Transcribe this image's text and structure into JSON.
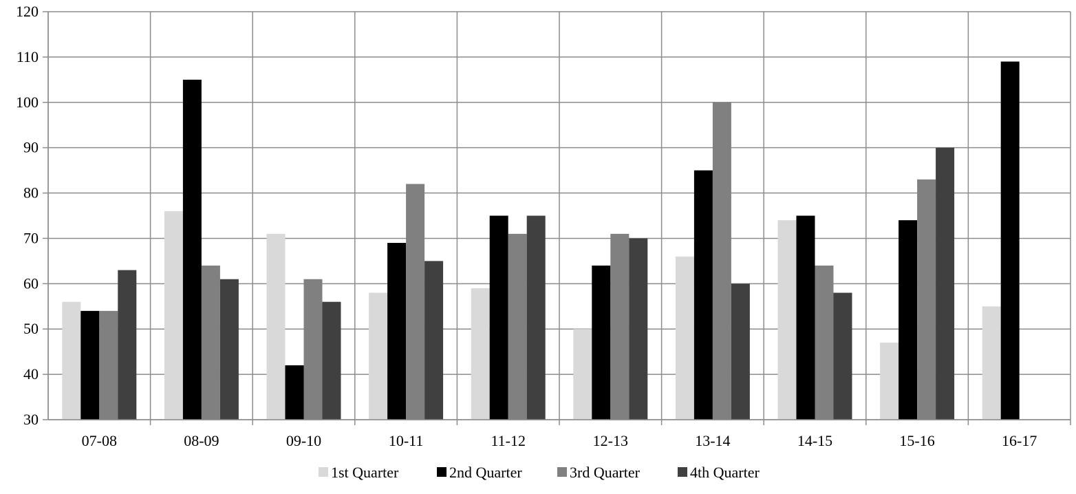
{
  "chart_data": {
    "type": "bar",
    "categories": [
      "07-08",
      "08-09",
      "09-10",
      "10-11",
      "11-12",
      "12-13",
      "13-14",
      "14-15",
      "15-16",
      "16-17"
    ],
    "series": [
      {
        "name": "1st Quarter",
        "color": "#d9d9d9",
        "values": [
          56,
          76,
          71,
          58,
          59,
          50,
          66,
          74,
          47,
          55
        ]
      },
      {
        "name": "2nd Quarter",
        "color": "#000000",
        "values": [
          54,
          105,
          42,
          69,
          75,
          64,
          85,
          75,
          74,
          109
        ]
      },
      {
        "name": "3rd Quarter",
        "color": "#808080",
        "values": [
          54,
          64,
          61,
          82,
          71,
          71,
          100,
          64,
          83,
          null
        ]
      },
      {
        "name": "4th Quarter",
        "color": "#404040",
        "values": [
          63,
          61,
          56,
          65,
          75,
          70,
          60,
          58,
          90,
          null
        ]
      }
    ],
    "ylim": [
      30,
      120
    ],
    "yticks": [
      30,
      40,
      50,
      60,
      70,
      80,
      90,
      100,
      110,
      120
    ],
    "grid": true,
    "legend_position": "bottom",
    "title": "",
    "xlabel": "",
    "ylabel": ""
  }
}
